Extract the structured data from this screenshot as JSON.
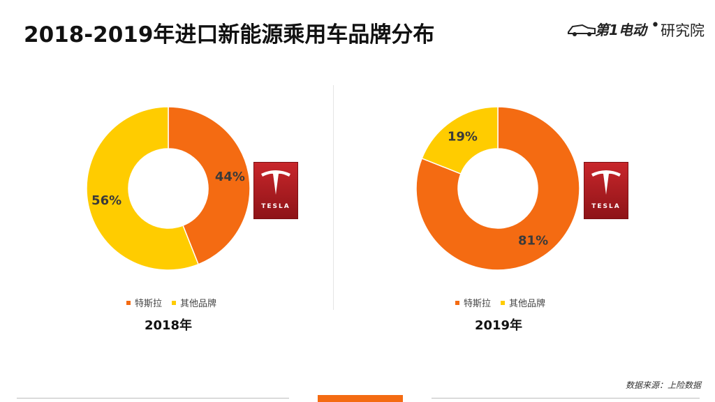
{
  "page": {
    "title": "2018-2019年进口新能源乘用车品牌分布",
    "logo_brand": "第1电动",
    "logo_institute": "研究院",
    "source": "数据来源：上险数据"
  },
  "colors": {
    "tesla": "#f46b12",
    "other": "#ffcc00",
    "tesla_badge": "#b81d22"
  },
  "chart_data": [
    {
      "type": "pie",
      "variant": "donut",
      "title": "2018年",
      "categories": [
        "特斯拉",
        "其他品牌"
      ],
      "values": [
        44,
        56
      ],
      "labels": [
        "44%",
        "56%"
      ],
      "colors": [
        "#f46b12",
        "#ffcc00"
      ],
      "legend": "bottom"
    },
    {
      "type": "pie",
      "variant": "donut",
      "title": "2019年",
      "categories": [
        "特斯拉",
        "其他品牌"
      ],
      "values": [
        81,
        19
      ],
      "labels": [
        "81%",
        "19%"
      ],
      "colors": [
        "#f46b12",
        "#ffcc00"
      ],
      "legend": "bottom"
    }
  ],
  "badges": [
    {
      "icon": "tesla-logo-icon",
      "word": "TESLA"
    },
    {
      "icon": "tesla-logo-icon",
      "word": "TESLA"
    }
  ]
}
